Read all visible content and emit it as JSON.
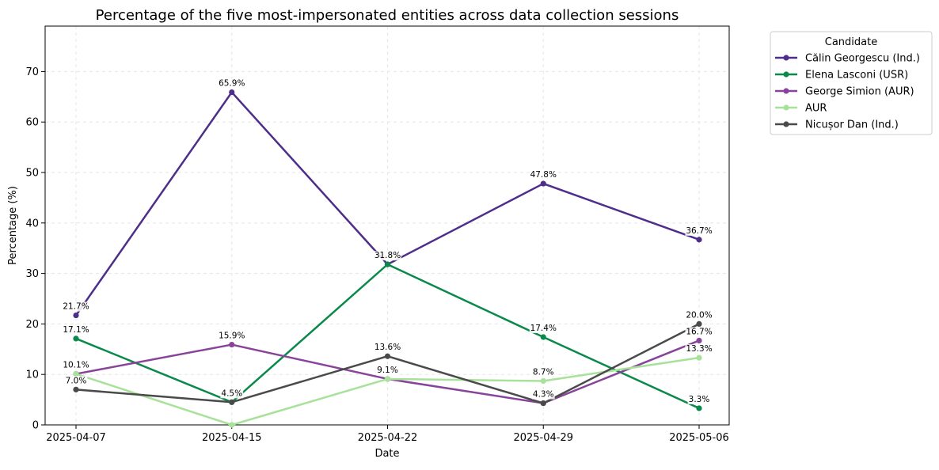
{
  "chart_data": {
    "type": "line",
    "title": "Percentage of the five most-impersonated entities across data collection sessions",
    "xlabel": "Date",
    "ylabel": "Percentage (%)",
    "x": [
      "2025-04-07",
      "2025-04-15",
      "2025-04-22",
      "2025-04-29",
      "2025-05-06"
    ],
    "ylim": [
      0,
      79
    ],
    "yticks": [
      0,
      10,
      20,
      30,
      40,
      50,
      60,
      70
    ],
    "grid": true,
    "legend": {
      "title": "Candidate",
      "placement": "outside-top-right"
    },
    "series": [
      {
        "name": "Călin Georgescu (Ind.)",
        "color": "#4f2d8a",
        "values": [
          21.7,
          65.9,
          31.8,
          47.8,
          36.7
        ],
        "labels": [
          "21.7%",
          "65.9%",
          "31.8%",
          "47.8%",
          "36.7%"
        ]
      },
      {
        "name": "Elena Lasconi (USR)",
        "color": "#0a8a4a",
        "values": [
          17.1,
          4.5,
          31.8,
          17.4,
          3.3
        ],
        "labels": [
          "17.1%",
          "4.5%",
          "",
          "17.4%",
          "3.3%"
        ]
      },
      {
        "name": "George Simion (AUR)",
        "color": "#88449a",
        "values": [
          10.1,
          15.9,
          9.1,
          4.3,
          16.7
        ],
        "labels": [
          "10.1%",
          "15.9%",
          "9.1%",
          "",
          "16.7%"
        ]
      },
      {
        "name": "AUR",
        "color": "#a8e29a",
        "values": [
          10.1,
          0,
          9.1,
          8.7,
          13.3
        ],
        "labels": [
          "",
          "",
          "",
          "8.7%",
          "13.3%"
        ]
      },
      {
        "name": "Nicușor Dan (Ind.)",
        "color": "#4a4a4a",
        "values": [
          7.0,
          4.5,
          13.6,
          4.3,
          20.0
        ],
        "labels": [
          "7.0%",
          "",
          "13.6%",
          "4.3%",
          "20.0%"
        ]
      }
    ]
  }
}
